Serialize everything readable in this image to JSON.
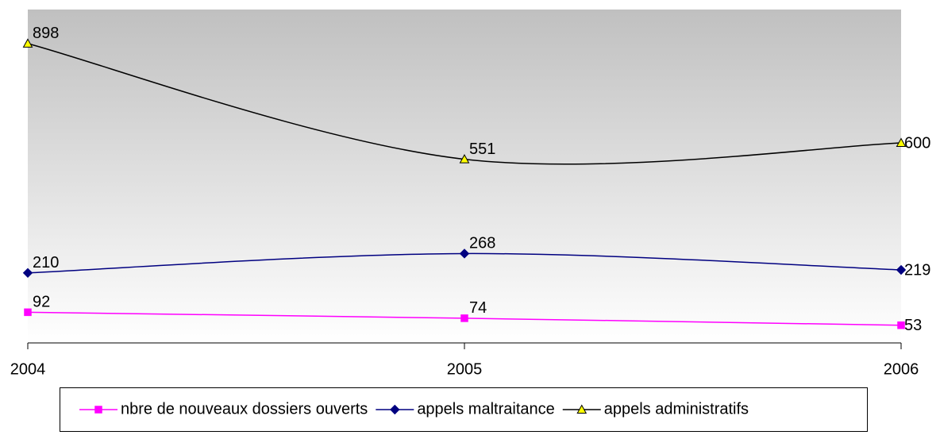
{
  "chart_data": {
    "type": "line",
    "smooth": true,
    "categories": [
      "2004",
      "2005",
      "2006"
    ],
    "ylim": [
      0,
      1000
    ],
    "series": [
      {
        "name": "nbre de nouveaux dossiers ouverts",
        "color": "#ff00ff",
        "marker": "square",
        "marker_fill": "#ff00ff",
        "values": [
          92,
          74,
          53
        ]
      },
      {
        "name": "appels maltraitance",
        "color": "#000080",
        "marker": "diamond",
        "marker_fill": "#000080",
        "values": [
          210,
          268,
          219
        ]
      },
      {
        "name": "appels administratifs",
        "color": "#000000",
        "marker": "triangle",
        "marker_fill": "#ffff00",
        "values": [
          898,
          551,
          600
        ]
      }
    ],
    "legend": "bottom"
  }
}
